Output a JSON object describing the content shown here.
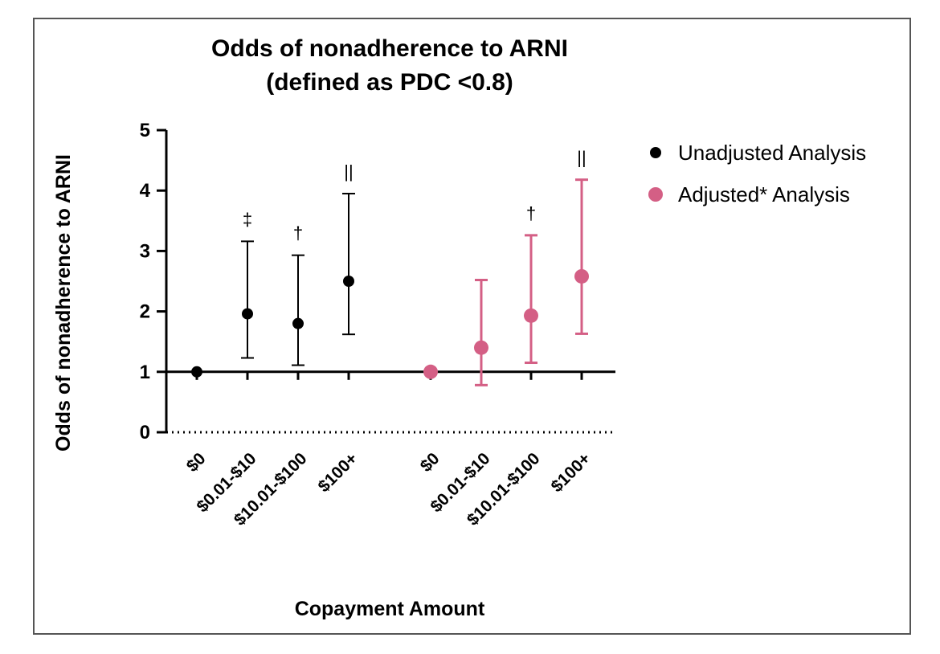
{
  "chart_data": {
    "type": "scatter",
    "title_line1": "Odds of nonadherence to ARNI",
    "title_line2": "(defined as PDC <0.8)",
    "xlabel": "Copayment Amount",
    "ylabel": "Odds of nonadherence to ARNI",
    "ylim": [
      0,
      5
    ],
    "yticks": [
      0,
      1,
      2,
      3,
      4,
      5
    ],
    "reference_line": 1,
    "colors": {
      "unadjusted": "#000000",
      "adjusted": "#d45f85",
      "axis": "#000000"
    },
    "legend": {
      "placement": "right",
      "unadjusted": "Unadjusted Analysis",
      "adjusted": "Adjusted* Analysis"
    },
    "series": [
      {
        "name": "Unadjusted Analysis",
        "key": "unadjusted",
        "categories": [
          "$0",
          "$0.01-$10",
          "$10.01-$100",
          "$100+"
        ],
        "values": [
          1.0,
          1.96,
          1.8,
          2.5
        ],
        "lower": [
          null,
          1.23,
          1.11,
          1.62
        ],
        "upper": [
          null,
          3.16,
          2.93,
          3.95
        ],
        "markers": [
          "",
          "‡",
          "†",
          "||"
        ]
      },
      {
        "name": "Adjusted* Analysis",
        "key": "adjusted",
        "categories": [
          "$0",
          "$0.01-$10",
          "$10.01-$100",
          "$100+"
        ],
        "values": [
          1.0,
          1.4,
          1.93,
          2.58
        ],
        "lower": [
          null,
          0.78,
          1.15,
          1.63
        ],
        "upper": [
          null,
          2.52,
          3.26,
          4.18
        ],
        "markers": [
          "",
          "",
          "†",
          "||"
        ]
      }
    ]
  }
}
